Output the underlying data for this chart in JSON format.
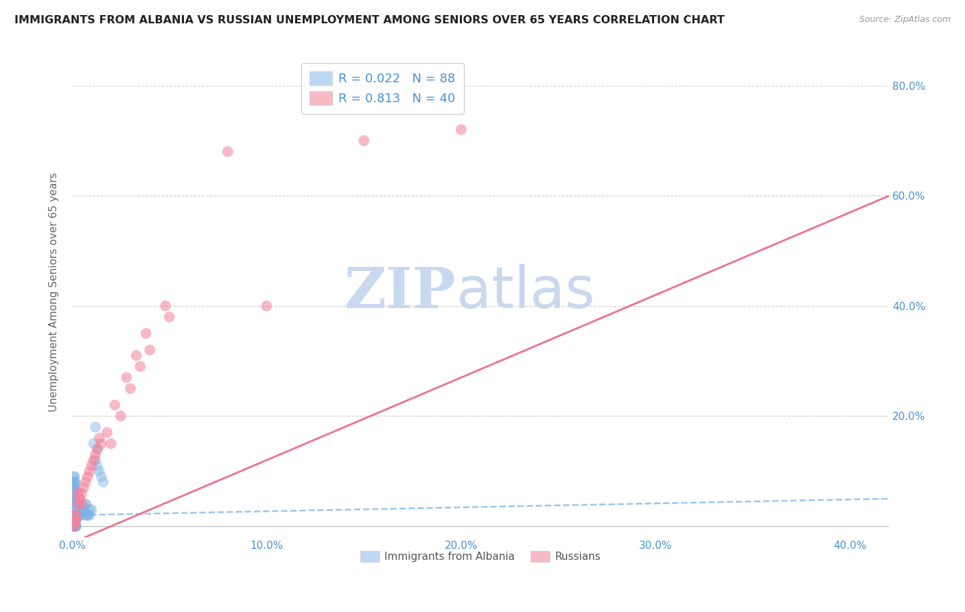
{
  "title": "IMMIGRANTS FROM ALBANIA VS RUSSIAN UNEMPLOYMENT AMONG SENIORS OVER 65 YEARS CORRELATION CHART",
  "source": "Source: ZipAtlas.com",
  "ylabel": "Unemployment Among Seniors over 65 years",
  "xlim": [
    0.0,
    0.42
  ],
  "ylim": [
    -0.02,
    0.87
  ],
  "xticks": [
    0.0,
    0.1,
    0.2,
    0.3,
    0.4
  ],
  "yticks": [
    0.0,
    0.2,
    0.4,
    0.6,
    0.8
  ],
  "xticklabels": [
    "0.0%",
    "10.0%",
    "20.0%",
    "30.0%",
    "40.0%"
  ],
  "yticklabels": [
    "",
    "20.0%",
    "40.0%",
    "60.0%",
    "80.0%"
  ],
  "watermark_zip": "ZIP",
  "watermark_atlas": "atlas",
  "watermark_color_zip": "#c8d8ee",
  "watermark_color_atlas": "#c8d8ee",
  "albania_color": "#7ab3e8",
  "russia_color": "#f48099",
  "albania_line_color": "#7ab3e8",
  "russia_line_color": "#f06080",
  "albania_scatter_x": [
    0.0005,
    0.001,
    0.0015,
    0.001,
    0.002,
    0.001,
    0.0005,
    0.001,
    0.002,
    0.0008,
    0.001,
    0.0012,
    0.0008,
    0.001,
    0.0005,
    0.0015,
    0.001,
    0.002,
    0.0008,
    0.001,
    0.0005,
    0.001,
    0.0012,
    0.0008,
    0.0015,
    0.001,
    0.0008,
    0.001,
    0.0005,
    0.0012,
    0.002,
    0.0015,
    0.001,
    0.0008,
    0.001,
    0.0005,
    0.0012,
    0.0015,
    0.001,
    0.002,
    0.0008,
    0.001,
    0.0015,
    0.001,
    0.0005,
    0.002,
    0.001,
    0.0012,
    0.0008,
    0.001,
    0.0005,
    0.0015,
    0.001,
    0.002,
    0.0008,
    0.001,
    0.0012,
    0.0015,
    0.001,
    0.0008,
    0.003,
    0.004,
    0.003,
    0.005,
    0.004,
    0.003,
    0.005,
    0.004,
    0.003,
    0.005,
    0.007,
    0.006,
    0.008,
    0.007,
    0.006,
    0.009,
    0.01,
    0.008,
    0.007,
    0.009,
    0.012,
    0.011,
    0.013,
    0.012,
    0.014,
    0.015,
    0.013,
    0.016
  ],
  "albania_scatter_y": [
    0.0,
    0.01,
    0.0,
    0.02,
    0.0,
    0.01,
    0.0,
    0.02,
    0.01,
    0.0,
    0.01,
    0.0,
    0.02,
    0.01,
    0.0,
    0.01,
    0.02,
    0.0,
    0.01,
    0.02,
    0.0,
    0.01,
    0.0,
    0.02,
    0.01,
    0.0,
    0.01,
    0.02,
    0.0,
    0.01,
    0.0,
    0.01,
    0.02,
    0.0,
    0.01,
    0.02,
    0.0,
    0.01,
    0.0,
    0.02,
    0.04,
    0.05,
    0.04,
    0.06,
    0.05,
    0.04,
    0.05,
    0.06,
    0.04,
    0.05,
    0.07,
    0.08,
    0.09,
    0.07,
    0.08,
    0.07,
    0.09,
    0.08,
    0.07,
    0.08,
    0.03,
    0.02,
    0.04,
    0.03,
    0.02,
    0.04,
    0.03,
    0.02,
    0.04,
    0.03,
    0.02,
    0.03,
    0.02,
    0.04,
    0.03,
    0.02,
    0.03,
    0.02,
    0.04,
    0.03,
    0.18,
    0.15,
    0.14,
    0.12,
    0.1,
    0.09,
    0.11,
    0.08
  ],
  "russia_scatter_x": [
    0.0005,
    0.001,
    0.0008,
    0.002,
    0.001,
    0.0015,
    0.001,
    0.002,
    0.003,
    0.004,
    0.003,
    0.005,
    0.004,
    0.006,
    0.005,
    0.007,
    0.008,
    0.009,
    0.01,
    0.012,
    0.011,
    0.013,
    0.015,
    0.014,
    0.02,
    0.018,
    0.025,
    0.022,
    0.03,
    0.028,
    0.035,
    0.033,
    0.04,
    0.038,
    0.05,
    0.048,
    0.08,
    0.1,
    0.15,
    0.2
  ],
  "russia_scatter_y": [
    0.0,
    0.01,
    0.02,
    0.01,
    0.0,
    0.02,
    0.01,
    0.02,
    0.04,
    0.05,
    0.06,
    0.04,
    0.05,
    0.07,
    0.06,
    0.08,
    0.09,
    0.1,
    0.11,
    0.13,
    0.12,
    0.14,
    0.15,
    0.16,
    0.15,
    0.17,
    0.2,
    0.22,
    0.25,
    0.27,
    0.29,
    0.31,
    0.32,
    0.35,
    0.38,
    0.4,
    0.68,
    0.4,
    0.7,
    0.72
  ],
  "albania_trend_x": [
    0.0,
    0.42
  ],
  "albania_trend_y": [
    0.02,
    0.05
  ],
  "russia_trend_x": [
    0.0,
    0.42
  ],
  "russia_trend_y": [
    -0.03,
    0.6
  ]
}
